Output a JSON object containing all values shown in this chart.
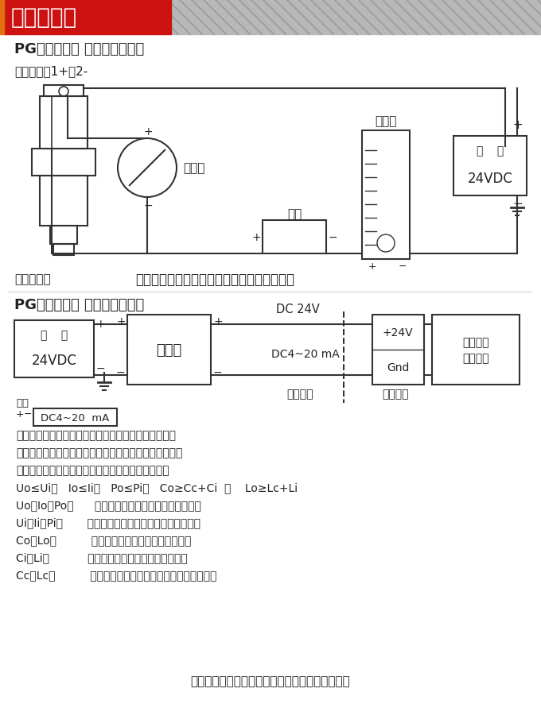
{
  "title_banner": "安装示意图",
  "banner_red": "#cc1111",
  "title_text_color": "#ffffff",
  "section1_title": "PG压力变送器 现场连接示意图",
  "label_hesiman": "赫斯曼接头1+、2-",
  "label_ammeter": "电流表",
  "label_load": "负载",
  "label_indicator": "指示仪",
  "label_power1_line1": "电    源",
  "label_power1_line2": "24VDC",
  "label_transmitter": "压力变送器",
  "notice1": "非本安防爆型压力变送器可以用稳压电源供电",
  "section2_title": "PG压力变送器 现场连接示意图",
  "label_power2_line1": "电    源",
  "label_power2_line2": "24VDC",
  "label_safety_barrier": "安全栅",
  "label_dc24v": "DC 24V",
  "label_dc4_20mA": "DC4~20 mA",
  "label_safe_area": "安全场所",
  "label_danger_area": "危险场所",
  "label_plus24v": "+24V",
  "label_gnd": "Gnd",
  "label_intrinsic_line1": "本安型压",
  "label_intrinsic_line2": "力变送器",
  "label_output": "输出",
  "label_dc4_20b": "DC4~20  mA",
  "text_lines": [
    "安全栅须取得防爆合格证，使用时应按其说明书的要求",
    "进行、安全栅防爆标志必须不低于压力变送器防爆标志。",
    "所配用安全栅参数必须符合本安系统参数匹配原则：",
    "Uo≤Ui、   Io≤Ii、   Po≤Pi、   Co≥Cc+Ci  和    Lo≥Lc+Li",
    "Uo、Io、Po：      安全栅的最大输出电压、电流和功率",
    "Ui、Ii、Pi：       压力变送器最大输入电压、电流和功率",
    "Co、Lo：          安全栅允许的最大外部电容和电感",
    "Ci、Li：           压力变送器的最大外部电容和电感",
    "Cc、Lc：          两者之间连接电缆允许总的分布电容和电感"
  ],
  "footer_text": "本安防爆型压力变送建议使用安全栅供电、见上图",
  "bg_color": "#ffffff",
  "lc": "#333333",
  "tc": "#222222"
}
